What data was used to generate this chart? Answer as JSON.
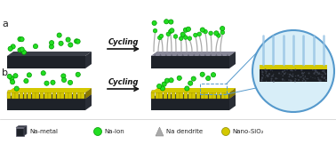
{
  "bg_color": "#ffffff",
  "na_metal_color": "#1e2229",
  "na_metal_top_color": "#3a3e47",
  "na_metal_right_color": "#2a2e36",
  "na_ion_color": "#22dd22",
  "na_ion_edge_color": "#009900",
  "nano_sio2_color": "#d4c800",
  "nano_sio2_edge_color": "#888800",
  "nano_sio2_dark_color": "#8a7a00",
  "dendrite_color": "#aaaaaa",
  "dendrite_tip_color": "#22dd22",
  "arrow_color": "#111111",
  "cycling_text": "Cycling",
  "label_a": "a",
  "label_b": "b",
  "legend_items": [
    "Na-metal",
    "Na-ion",
    "Na dendrite",
    "Nano-SiO₂"
  ],
  "circle_bg_color": "#d8eef8",
  "circle_edge_color": "#5599cc",
  "zoom_line_color": "#5599cc",
  "flow_color": "#88bbdd",
  "flow_highlight": "#aaccee",
  "inner_block_color": "#1a1d22",
  "inner_dot_color": "#3a3f4a",
  "gray_layer_color": "#888898",
  "separator_color": "#cccccc"
}
